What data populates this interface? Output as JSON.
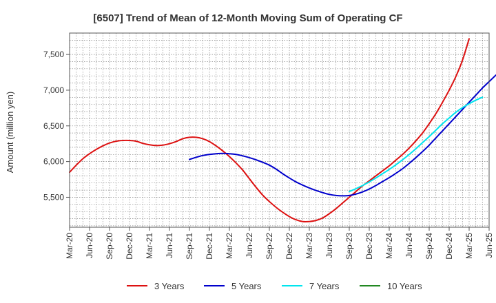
{
  "chart_data": {
    "type": "line",
    "title": "[6507]  Trend of Mean of 12-Month Moving Sum of Operating CF",
    "xlabel": "",
    "ylabel": "Amount (million yen)",
    "ylim": [
      5080,
      7800
    ],
    "yticks": [
      5500,
      6000,
      6500,
      7000,
      7500
    ],
    "ytick_labels": [
      "5,500",
      "6,000",
      "6,500",
      "7,000",
      "7,500"
    ],
    "xticks": [
      "Mar-20",
      "Jun-20",
      "Sep-20",
      "Dec-20",
      "Mar-21",
      "Jun-21",
      "Sep-21",
      "Dec-21",
      "Mar-22",
      "Jun-22",
      "Sep-22",
      "Dec-22",
      "Mar-23",
      "Jun-23",
      "Sep-23",
      "Dec-23",
      "Mar-24",
      "Jun-24",
      "Sep-24",
      "Dec-24",
      "Mar-25",
      "Jun-25"
    ],
    "grid": true,
    "legend_position": "bottom",
    "series": [
      {
        "name": "3 Years",
        "color": "#dd1111",
        "x_start_index": 0,
        "values": [
          5850,
          5950,
          6040,
          6110,
          6170,
          6220,
          6260,
          6285,
          6295,
          6295,
          6285,
          6255,
          6235,
          6225,
          6230,
          6250,
          6280,
          6320,
          6340,
          6340,
          6320,
          6280,
          6220,
          6150,
          6070,
          5980,
          5880,
          5760,
          5640,
          5530,
          5440,
          5360,
          5290,
          5230,
          5185,
          5160,
          5160,
          5175,
          5210,
          5270,
          5340,
          5420,
          5500,
          5580,
          5660,
          5730,
          5800,
          5870,
          5940,
          6020,
          6100,
          6190,
          6290,
          6400,
          6530,
          6670,
          6830,
          7000,
          7190,
          7420,
          7720
        ]
      },
      {
        "name": "5 Years",
        "color": "#0000cc",
        "x_start_index": 18,
        "values": [
          6030,
          6060,
          6085,
          6100,
          6110,
          6115,
          6110,
          6100,
          6080,
          6055,
          6025,
          5990,
          5950,
          5895,
          5830,
          5770,
          5715,
          5670,
          5630,
          5595,
          5565,
          5540,
          5525,
          5520,
          5525,
          5545,
          5575,
          5615,
          5665,
          5720,
          5775,
          5835,
          5900,
          5975,
          6055,
          6140,
          6230,
          6330,
          6430,
          6530,
          6630,
          6730,
          6830,
          6930,
          7030,
          7120,
          7210
        ]
      },
      {
        "name": "7 Years",
        "color": "#00e5ee",
        "x_start_index": 42,
        "values": [
          5580,
          5620,
          5665,
          5715,
          5770,
          5830,
          5890,
          5955,
          6025,
          6100,
          6180,
          6265,
          6350,
          6440,
          6530,
          6610,
          6690,
          6755,
          6810,
          6860,
          6900
        ]
      },
      {
        "name": "10 Years",
        "color": "#228822",
        "x_start_index": 0,
        "values": []
      }
    ]
  }
}
